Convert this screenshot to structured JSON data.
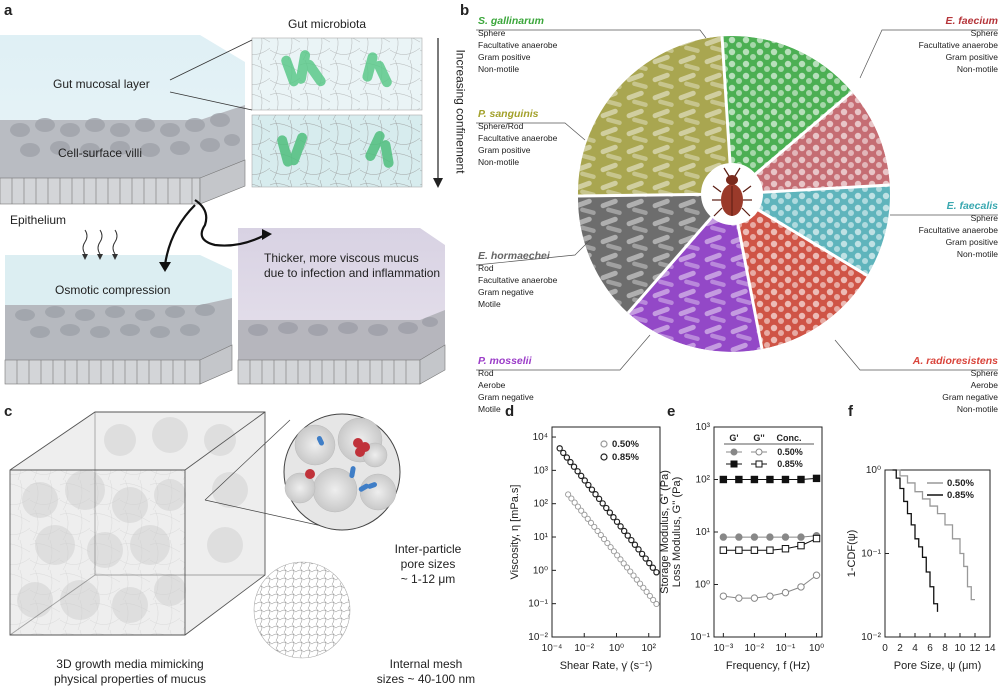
{
  "panels": {
    "a": "a",
    "b": "b",
    "c": "c",
    "d": "d",
    "e": "e",
    "f": "f"
  },
  "panel_a": {
    "gut_microbiota": "Gut microbiota",
    "gut_mucosal_layer": "Gut mucosal layer",
    "cell_surface_villi": "Cell-surface villi",
    "epithelium": "Epithelium",
    "increasing_confinement": "Increasing confinement",
    "osmotic_compression": "Osmotic compression",
    "thicker_line1": "Thicker, more viscous mucus",
    "thicker_line2": "due to infection and inflammation"
  },
  "panel_b": {
    "bacteria": [
      {
        "name": "S. gallinarum",
        "color": "#3aa63a",
        "traits": [
          "Sphere",
          "Facultative anaerobe",
          "Gram positive",
          "Non-motile"
        ]
      },
      {
        "name": "E. faecium",
        "color": "#b5353a",
        "traits": [
          "Sphere",
          "Facultative anaerobe",
          "Gram positive",
          "Non-motile"
        ]
      },
      {
        "name": "P. sanguinis",
        "color": "#a3a12b",
        "traits": [
          "Sphere/Rod",
          "Facultative anaerobe",
          "Gram positive",
          "Non-motile"
        ]
      },
      {
        "name": "E. faecalis",
        "color": "#3aa8b0",
        "traits": [
          "Sphere",
          "Facultative anaerobe",
          "Gram positive",
          "Non-motile"
        ]
      },
      {
        "name": "E. hormaechei",
        "color": "#666666",
        "traits": [
          "Rod",
          "Facultative anaerobe",
          "Gram negative",
          "Motile"
        ]
      },
      {
        "name": "P. mosselii",
        "color": "#9b3cc8",
        "traits": [
          "Rod",
          "Aerobe",
          "Gram negative",
          "Motile"
        ]
      },
      {
        "name": "A. radioresistens",
        "color": "#d9443b",
        "traits": [
          "Sphere",
          "Aerobe",
          "Gram negative",
          "Non-motile"
        ]
      }
    ]
  },
  "panel_c": {
    "pore_line1": "Inter-particle",
    "pore_line2": "pore sizes",
    "pore_line3": "~ 1-12 μm",
    "mesh_line1": "Internal mesh",
    "mesh_line2": "sizes ~ 40-100 nm",
    "media_line1": "3D growth media mimicking",
    "media_line2": "physical properties of mucus"
  },
  "chart_data": [
    {
      "id": "d",
      "type": "scatter",
      "xlabel": "Shear Rate, γ̇ (s⁻¹)",
      "ylabel": "Viscosity, η [mPa.s]",
      "xscale": "log",
      "yscale": "log",
      "xlim": [
        0.0001,
        500
      ],
      "ylim": [
        0.01,
        20000
      ],
      "xticks": [
        "10⁻⁴",
        "10⁻²",
        "10⁰",
        "10²"
      ],
      "yticks": [
        "10⁻²",
        "10⁻¹",
        "10⁰",
        "10¹",
        "10²",
        "10³",
        "10⁴"
      ],
      "legend": [
        "0.50%",
        "0.85%"
      ],
      "series": [
        {
          "name": "0.50%",
          "power_law": {
            "K": 3.0,
            "n": 0.4
          },
          "x_from": 0.001,
          "x_to": 300,
          "values_desc": "η = K·γ̇^(n-1)"
        },
        {
          "name": "0.85%",
          "power_law": {
            "K": 30.0,
            "n": 0.38
          },
          "x_from": 0.0003,
          "x_to": 300,
          "values_desc": "η = K·γ̇^(n-1)"
        }
      ]
    },
    {
      "id": "e",
      "type": "line",
      "xlabel": "Frequency, f (Hz)",
      "ylabel1": "Storage Modulus, G' (Pa)",
      "ylabel2": "Loss Modulus, G'' (Pa)",
      "xscale": "log",
      "yscale": "log",
      "xlim": [
        0.0005,
        1.5
      ],
      "ylim": [
        0.1,
        1000
      ],
      "xticks": [
        "10⁻³",
        "10⁻²",
        "10⁻¹",
        "10⁰"
      ],
      "yticks": [
        "10⁻¹",
        "10⁰",
        "10¹",
        "10²",
        "10³"
      ],
      "legend_header": [
        "G'",
        "G''",
        "Conc."
      ],
      "legend_rows": [
        "0.50%",
        "0.85%"
      ],
      "x": [
        0.001,
        0.00316,
        0.01,
        0.0316,
        0.1,
        0.316,
        1.0
      ],
      "series": [
        {
          "name": "G' 0.50%",
          "values": [
            8,
            8,
            8,
            8,
            8,
            8,
            8.5
          ]
        },
        {
          "name": "G'' 0.50%",
          "values": [
            0.6,
            0.55,
            0.55,
            0.6,
            0.7,
            0.9,
            1.5
          ]
        },
        {
          "name": "G' 0.85%",
          "values": [
            100,
            100,
            100,
            100,
            100,
            100,
            105
          ]
        },
        {
          "name": "G'' 0.85%",
          "values": [
            4.5,
            4.5,
            4.5,
            4.5,
            4.8,
            5.5,
            7.5
          ]
        }
      ]
    },
    {
      "id": "f",
      "type": "line",
      "xlabel": "Pore Size, ψ (μm)",
      "ylabel": "1-CDF(ψ)",
      "xscale": "linear",
      "yscale": "log",
      "xlim": [
        0,
        14
      ],
      "ylim": [
        0.01,
        1
      ],
      "xticks": [
        "0",
        "2",
        "4",
        "6",
        "8",
        "10",
        "12",
        "14"
      ],
      "yticks": [
        "10⁻²",
        "10⁻¹",
        "10⁰"
      ],
      "legend": [
        "0.50%",
        "0.85%"
      ],
      "series": [
        {
          "name": "0.50%",
          "x": [
            1.0,
            2,
            3,
            4,
            5,
            6,
            7,
            8,
            9,
            10,
            10.5,
            11,
            11.5,
            12
          ],
          "values": [
            1.0,
            0.85,
            0.7,
            0.55,
            0.45,
            0.37,
            0.3,
            0.22,
            0.15,
            0.1,
            0.07,
            0.04,
            0.028,
            0.028
          ]
        },
        {
          "name": "0.85%",
          "x": [
            1.0,
            1.5,
            2,
            2.5,
            3,
            3.5,
            4,
            4.5,
            5,
            5.5,
            6,
            6.5,
            7
          ],
          "values": [
            1.0,
            0.8,
            0.6,
            0.42,
            0.3,
            0.22,
            0.15,
            0.12,
            0.09,
            0.06,
            0.04,
            0.025,
            0.02
          ]
        }
      ]
    }
  ]
}
